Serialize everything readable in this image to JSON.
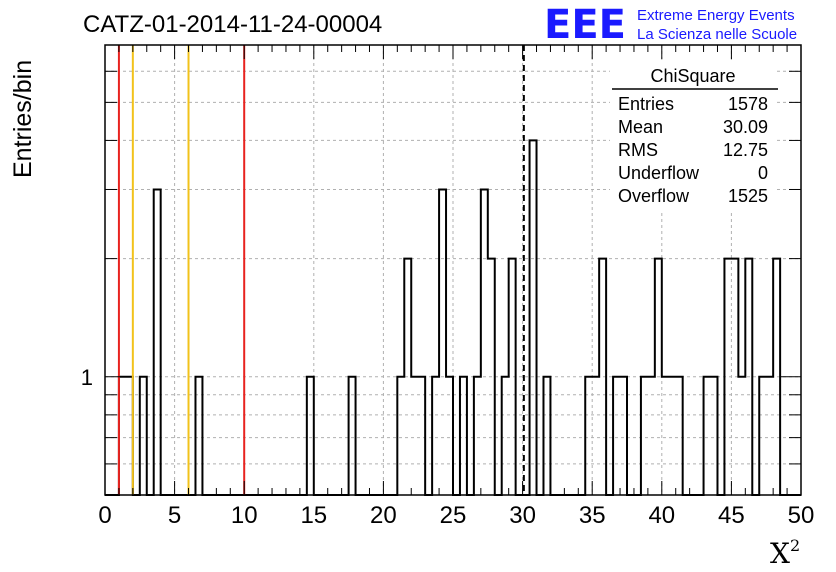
{
  "chart_data": {
    "type": "histogram",
    "title": "CATZ-01-2014-11-24-00004",
    "xlabel": "X",
    "xlabel_sup": "2",
    "ylabel": "Entries/bin",
    "xlim": [
      0,
      50
    ],
    "ylog": true,
    "ylim": [
      0.5,
      7
    ],
    "grid": true,
    "bin_width": 0.5,
    "x_ticks": [
      "0",
      "5",
      "10",
      "15",
      "20",
      "25",
      "30",
      "35",
      "40",
      "45",
      "50"
    ],
    "y_tick_label": "1",
    "bins": [
      {
        "x": 1.0,
        "y": 1
      },
      {
        "x": 1.5,
        "y": 1
      },
      {
        "x": 2.5,
        "y": 1
      },
      {
        "x": 3.5,
        "y": 3
      },
      {
        "x": 6.5,
        "y": 1
      },
      {
        "x": 14.5,
        "y": 1
      },
      {
        "x": 17.5,
        "y": 1
      },
      {
        "x": 21.0,
        "y": 1
      },
      {
        "x": 21.5,
        "y": 2
      },
      {
        "x": 22.0,
        "y": 1
      },
      {
        "x": 22.5,
        "y": 1
      },
      {
        "x": 23.5,
        "y": 1
      },
      {
        "x": 24.0,
        "y": 3
      },
      {
        "x": 24.5,
        "y": 1
      },
      {
        "x": 25.5,
        "y": 1
      },
      {
        "x": 26.5,
        "y": 1
      },
      {
        "x": 27.0,
        "y": 3
      },
      {
        "x": 27.5,
        "y": 2
      },
      {
        "x": 28.5,
        "y": 1
      },
      {
        "x": 29.0,
        "y": 2
      },
      {
        "x": 30.5,
        "y": 4
      },
      {
        "x": 31.5,
        "y": 1
      },
      {
        "x": 34.5,
        "y": 1
      },
      {
        "x": 35.0,
        "y": 1
      },
      {
        "x": 35.5,
        "y": 2
      },
      {
        "x": 36.5,
        "y": 1
      },
      {
        "x": 37.0,
        "y": 1
      },
      {
        "x": 38.5,
        "y": 1
      },
      {
        "x": 39.0,
        "y": 1
      },
      {
        "x": 39.5,
        "y": 2
      },
      {
        "x": 40.0,
        "y": 1
      },
      {
        "x": 40.5,
        "y": 1
      },
      {
        "x": 41.0,
        "y": 1
      },
      {
        "x": 43.0,
        "y": 1
      },
      {
        "x": 43.5,
        "y": 1
      },
      {
        "x": 44.5,
        "y": 2
      },
      {
        "x": 45.0,
        "y": 2
      },
      {
        "x": 45.5,
        "y": 1
      },
      {
        "x": 46.0,
        "y": 2
      },
      {
        "x": 47.0,
        "y": 1
      },
      {
        "x": 47.5,
        "y": 1
      },
      {
        "x": 48.0,
        "y": 2
      }
    ],
    "reference_lines": [
      {
        "x": 1,
        "color": "#e8231f",
        "style": "solid"
      },
      {
        "x": 2,
        "color": "#f2c21b",
        "style": "solid"
      },
      {
        "x": 6,
        "color": "#f2c21b",
        "style": "solid"
      },
      {
        "x": 10,
        "color": "#e8231f",
        "style": "solid"
      },
      {
        "x": 30.09,
        "color": "#000000",
        "style": "dashed"
      }
    ],
    "stats_box": {
      "title": "ChiSquare",
      "rows": [
        {
          "label": "Entries",
          "value": "1578"
        },
        {
          "label": "Mean",
          "value": "30.09"
        },
        {
          "label": "RMS",
          "value": "12.75"
        },
        {
          "label": "Underflow",
          "value": "0"
        },
        {
          "label": "Overflow",
          "value": "1525"
        }
      ]
    }
  },
  "logo": {
    "text": "EEE",
    "line1": "Extreme Energy Events",
    "line2": "La Scienza nelle Scuole",
    "color": "#1a1aff"
  }
}
